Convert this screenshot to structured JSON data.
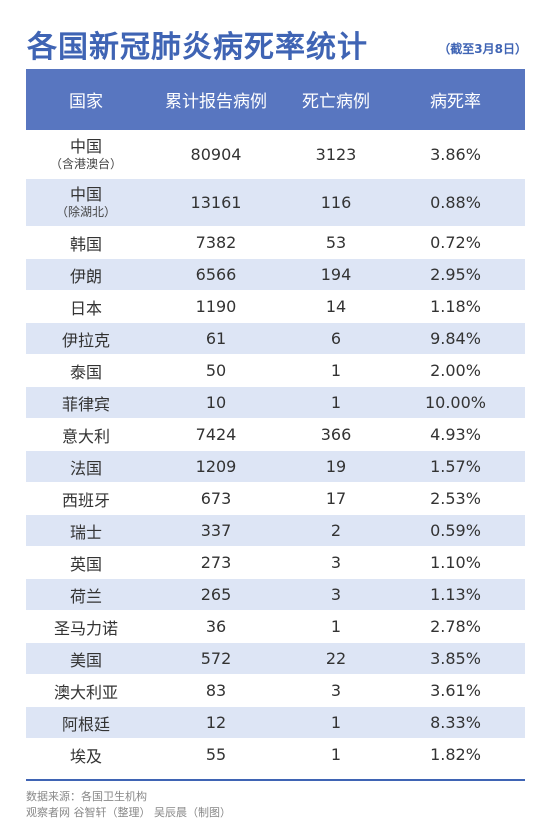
{
  "title": "各国新冠肺炎病死率统计",
  "title_note": "（截至3月8日）",
  "columns": [
    "国家",
    "累计报告病例",
    "死亡病例",
    "病死率"
  ],
  "rows": [
    {
      "country": "中国",
      "note": "（含港澳台）",
      "cases": "80904",
      "deaths": "3123",
      "rate": "3.86%"
    },
    {
      "country": "中国",
      "note": "（除湖北）",
      "cases": "13161",
      "deaths": "116",
      "rate": "0.88%"
    },
    {
      "country": "韩国",
      "note": "",
      "cases": "7382",
      "deaths": "53",
      "rate": "0.72%"
    },
    {
      "country": "伊朗",
      "note": "",
      "cases": "6566",
      "deaths": "194",
      "rate": "2.95%"
    },
    {
      "country": "日本",
      "note": "",
      "cases": "1190",
      "deaths": "14",
      "rate": "1.18%"
    },
    {
      "country": "伊拉克",
      "note": "",
      "cases": "61",
      "deaths": "6",
      "rate": "9.84%"
    },
    {
      "country": "泰国",
      "note": "",
      "cases": "50",
      "deaths": "1",
      "rate": "2.00%"
    },
    {
      "country": "菲律宾",
      "note": "",
      "cases": "10",
      "deaths": "1",
      "rate": "10.00%"
    },
    {
      "country": "意大利",
      "note": "",
      "cases": "7424",
      "deaths": "366",
      "rate": "4.93%"
    },
    {
      "country": "法国",
      "note": "",
      "cases": "1209",
      "deaths": "19",
      "rate": "1.57%"
    },
    {
      "country": "西班牙",
      "note": "",
      "cases": "673",
      "deaths": "17",
      "rate": "2.53%"
    },
    {
      "country": "瑞士",
      "note": "",
      "cases": "337",
      "deaths": "2",
      "rate": "0.59%"
    },
    {
      "country": "英国",
      "note": "",
      "cases": "273",
      "deaths": "3",
      "rate": "1.10%"
    },
    {
      "country": "荷兰",
      "note": "",
      "cases": "265",
      "deaths": "3",
      "rate": "1.13%"
    },
    {
      "country": "圣马力诺",
      "note": "",
      "cases": "36",
      "deaths": "1",
      "rate": "2.78%"
    },
    {
      "country": "美国",
      "note": "",
      "cases": "572",
      "deaths": "22",
      "rate": "3.85%"
    },
    {
      "country": "澳大利亚",
      "note": "",
      "cases": "83",
      "deaths": "3",
      "rate": "3.61%"
    },
    {
      "country": "阿根廷",
      "note": "",
      "cases": "12",
      "deaths": "1",
      "rate": "8.33%"
    },
    {
      "country": "埃及",
      "note": "",
      "cases": "55",
      "deaths": "1",
      "rate": "1.82%"
    }
  ],
  "footer": {
    "source": "数据来源：各国卫生机构",
    "credit": "观察者网 谷智轩（整理） 吴辰晨（制图）"
  },
  "colors": {
    "accent": "#3f64b4",
    "header_bg": "#5876c0",
    "stripe": "#dde5f5"
  }
}
